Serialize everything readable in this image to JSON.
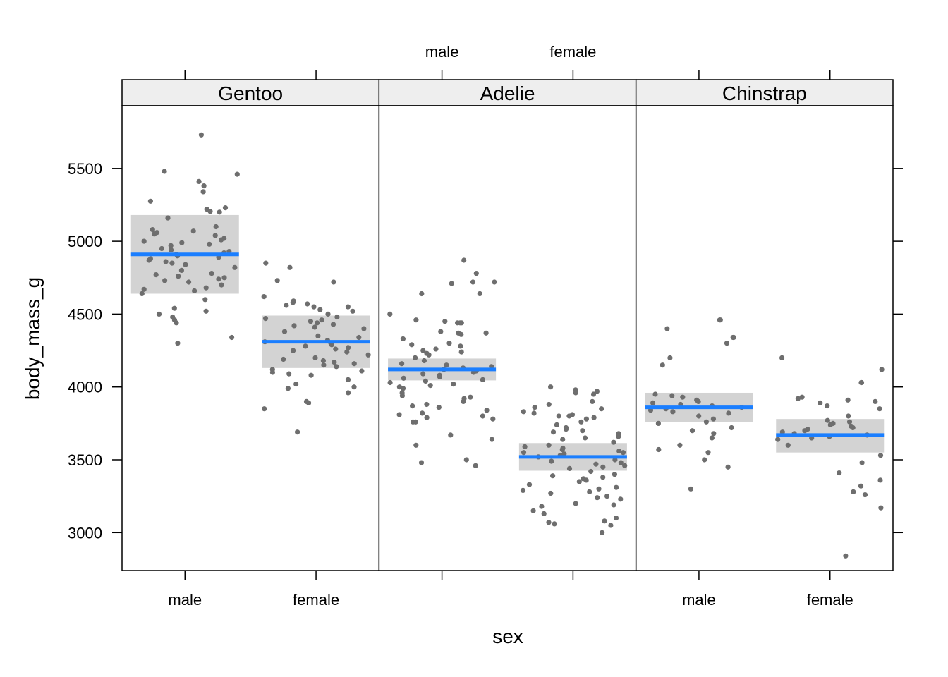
{
  "chart_data": {
    "type": "scatter",
    "xlabel": "sex",
    "ylabel": "body_mass_g",
    "ylim": [
      2740,
      5930
    ],
    "yticks": [
      3000,
      3500,
      4000,
      4500,
      5000,
      5500
    ],
    "categories": [
      "male",
      "female"
    ],
    "grid": false,
    "panels": [
      {
        "name": "Gentoo",
        "male": {
          "mean": 4910,
          "ci": [
            4640,
            5180
          ],
          "points": [
            5730,
            5480,
            5410,
            5460,
            5380,
            5340,
            5275,
            5230,
            5220,
            5200,
            5205,
            5160,
            5100,
            5080,
            5070,
            5060,
            5050,
            5040,
            5020,
            5010,
            5000,
            4990,
            4980,
            4970,
            4950,
            4940,
            4930,
            4920,
            4910,
            4900,
            4890,
            4880,
            4870,
            4860,
            4850,
            4840,
            4820,
            4800,
            4780,
            4770,
            4760,
            4750,
            4740,
            4730,
            4720,
            4700,
            4680,
            4670,
            4660,
            4640,
            4600,
            4540,
            4520,
            4500,
            4480,
            4460,
            4440,
            4340,
            4300
          ]
        },
        "female": {
          "mean": 4310,
          "ci": [
            4130,
            4490
          ],
          "points": [
            4850,
            4820,
            4730,
            4720,
            4620,
            4590,
            4580,
            4570,
            4560,
            4550,
            4550,
            4530,
            4520,
            4500,
            4480,
            4470,
            4460,
            4450,
            4440,
            4430,
            4420,
            4410,
            4400,
            4380,
            4350,
            4340,
            4320,
            4310,
            4300,
            4290,
            4280,
            4270,
            4260,
            4250,
            4240,
            4220,
            4200,
            4190,
            4180,
            4170,
            4160,
            4150,
            4140,
            4120,
            4110,
            4100,
            4090,
            4080,
            4050,
            4020,
            4000,
            3990,
            3960,
            3900,
            3890,
            3850,
            3690
          ]
        }
      },
      {
        "name": "Adelie",
        "male": {
          "mean": 4120,
          "ci": [
            4045,
            4195
          ],
          "points": [
            4870,
            4780,
            4720,
            4720,
            4710,
            4640,
            4640,
            4500,
            4460,
            4450,
            4440,
            4440,
            4440,
            4380,
            4370,
            4370,
            4360,
            4330,
            4300,
            4290,
            4280,
            4260,
            4250,
            4240,
            4230,
            4220,
            4200,
            4180,
            4160,
            4150,
            4140,
            4130,
            4120,
            4110,
            4100,
            4090,
            4080,
            4070,
            4060,
            4050,
            4040,
            4030,
            4020,
            4010,
            4000,
            3990,
            3960,
            3940,
            3930,
            3920,
            3900,
            3880,
            3870,
            3860,
            3840,
            3820,
            3810,
            3800,
            3790,
            3780,
            3760,
            3760,
            3670,
            3640,
            3600,
            3500,
            3480,
            3460
          ]
        },
        "female": {
          "mean": 3520,
          "ci": [
            3425,
            3615
          ],
          "points": [
            4000,
            3980,
            3970,
            3960,
            3950,
            3900,
            3880,
            3860,
            3850,
            3830,
            3820,
            3810,
            3800,
            3800,
            3790,
            3780,
            3760,
            3740,
            3720,
            3710,
            3700,
            3690,
            3680,
            3660,
            3650,
            3640,
            3620,
            3600,
            3590,
            3580,
            3570,
            3560,
            3550,
            3550,
            3540,
            3530,
            3520,
            3500,
            3490,
            3480,
            3470,
            3460,
            3450,
            3440,
            3420,
            3400,
            3390,
            3380,
            3370,
            3360,
            3350,
            3330,
            3310,
            3300,
            3290,
            3280,
            3270,
            3250,
            3240,
            3230,
            3200,
            3190,
            3180,
            3150,
            3130,
            3100,
            3080,
            3070,
            3060,
            3050,
            3000
          ]
        }
      },
      {
        "name": "Chinstrap",
        "male": {
          "mean": 3860,
          "ci": [
            3760,
            3960
          ],
          "points": [
            4460,
            4460,
            4400,
            4340,
            4340,
            4300,
            4200,
            4150,
            3950,
            3940,
            3930,
            3910,
            3900,
            3890,
            3880,
            3870,
            3860,
            3850,
            3840,
            3830,
            3820,
            3800,
            3780,
            3760,
            3750,
            3720,
            3700,
            3680,
            3650,
            3600,
            3570,
            3550,
            3500,
            3450,
            3300
          ]
        },
        "female": {
          "mean": 3670,
          "ci": [
            3550,
            3780
          ],
          "points": [
            4200,
            4120,
            4030,
            4030,
            3930,
            3920,
            3910,
            3900,
            3890,
            3870,
            3850,
            3800,
            3770,
            3760,
            3750,
            3740,
            3730,
            3720,
            3710,
            3700,
            3690,
            3680,
            3670,
            3660,
            3650,
            3640,
            3600,
            3530,
            3480,
            3410,
            3360,
            3320,
            3280,
            3260,
            3170,
            2840
          ]
        }
      }
    ],
    "colors": {
      "points": "#6e6e6e",
      "mean_line": "#1a7eff",
      "ci_band": "#d3d3d3",
      "strip_bg": "#eeeeee",
      "frame": "#000000"
    }
  }
}
